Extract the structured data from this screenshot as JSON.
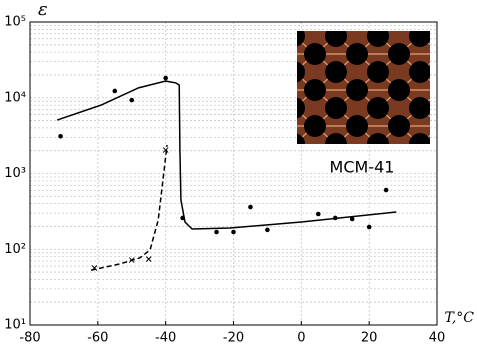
{
  "chart_data": {
    "type": "scatter",
    "y_label": "ε",
    "x_label": "T,°C",
    "annotation": "MCM-41",
    "xlim": [
      -80,
      40
    ],
    "xticks": [
      -80,
      -60,
      -40,
      -20,
      0,
      20,
      40
    ],
    "ylim": [
      10,
      100000
    ],
    "log_y": true,
    "grid": true,
    "yticks": [
      {
        "value": 10,
        "label": "10¹"
      },
      {
        "value": 100,
        "label": "10²"
      },
      {
        "value": 1000,
        "label": "10³"
      },
      {
        "value": 10000,
        "label": "10⁴"
      },
      {
        "value": 100000,
        "label": "10⁵"
      }
    ],
    "series": [
      {
        "style": "dots",
        "color": "#000000",
        "x": [
          -71,
          -55,
          -50,
          -40,
          -35,
          -25,
          -20,
          -15,
          -10,
          5,
          10,
          15,
          20,
          25
        ],
        "values": [
          3100,
          12300,
          9300,
          18200,
          259,
          169,
          169,
          361,
          180,
          292,
          259,
          251,
          197,
          605
        ]
      },
      {
        "style": "line",
        "color": "#000000",
        "x": [
          -72,
          -59,
          -48,
          -40,
          -37,
          -36,
          -35.8,
          -35.5,
          -34.3,
          -32.2,
          -21,
          0,
          28
        ],
        "values": [
          5080,
          8020,
          13500,
          16600,
          15700,
          14700,
          2040,
          447,
          229,
          185,
          191,
          229,
          310
        ]
      },
      {
        "style": "dashed",
        "color": "#000000",
        "x": [
          -62,
          -53.5,
          -47.6,
          -44.6,
          -42.2,
          -40.8,
          -39.6
        ],
        "values": [
          53,
          64,
          77,
          98,
          243,
          820,
          2380
        ]
      },
      {
        "style": "cross",
        "color": "#000000",
        "x": [
          -61,
          -50,
          -45,
          -40
        ],
        "values": [
          56.5,
          72,
          74,
          2040
        ]
      }
    ]
  }
}
